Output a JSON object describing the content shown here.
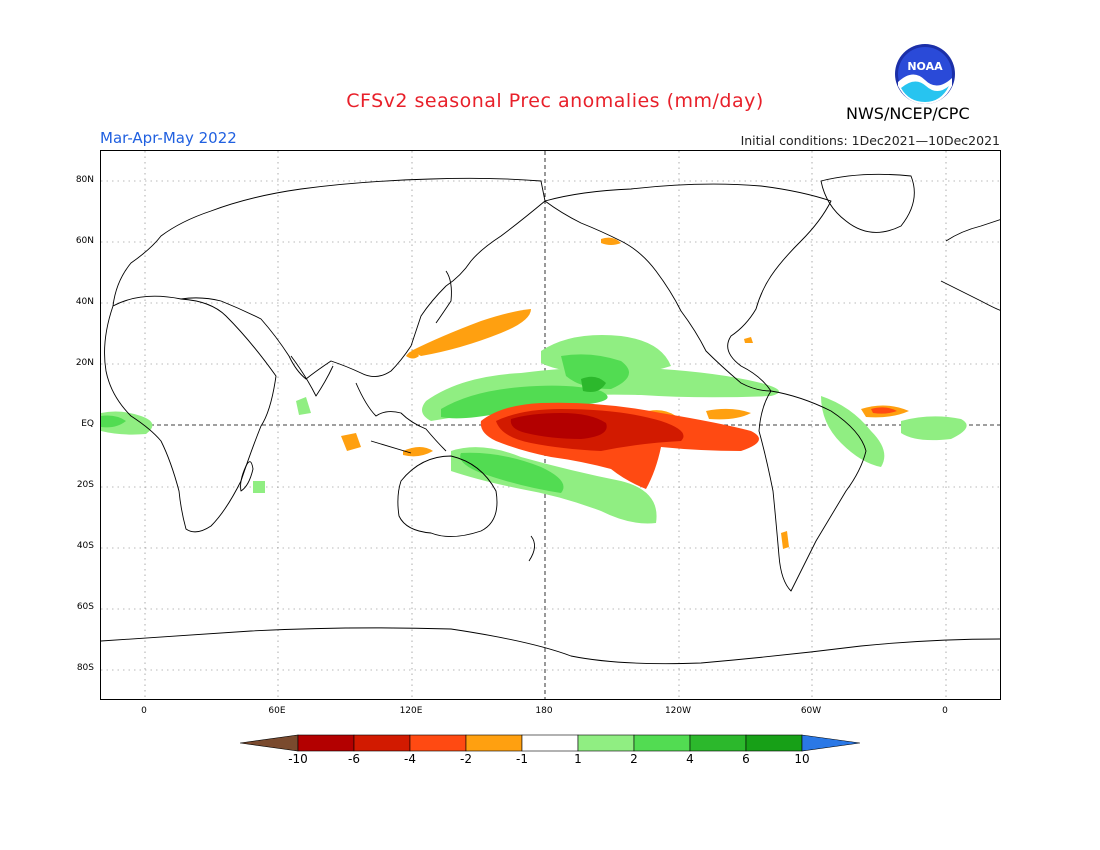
{
  "header": {
    "title": "CFSv2 seasonal Prec anomalies (mm/day)",
    "season": "Mar-Apr-May 2022",
    "initial_conditions": "Initial conditions: 1Dec2021—10Dec2021",
    "agency": "NWS/NCEP/CPC",
    "logo_text": "NOAA"
  },
  "map": {
    "lat_labels": [
      "80N",
      "60N",
      "40N",
      "20N",
      "EQ",
      "20S",
      "40S",
      "60S",
      "80S"
    ],
    "lon_labels": [
      "0",
      "60E",
      "120E",
      "180",
      "120W",
      "60W",
      "0"
    ]
  },
  "colorbar": {
    "labels": [
      "-10",
      "-6",
      "-4",
      "-2",
      "-1",
      "1",
      "2",
      "4",
      "6",
      "10"
    ],
    "colors": [
      "#7a4a2e",
      "#b30000",
      "#d21a00",
      "#ff4a12",
      "#ffa010",
      "#ffffff",
      "#90ee82",
      "#52dc52",
      "#2cb82c",
      "#17a017",
      "#2a78e6"
    ]
  }
}
